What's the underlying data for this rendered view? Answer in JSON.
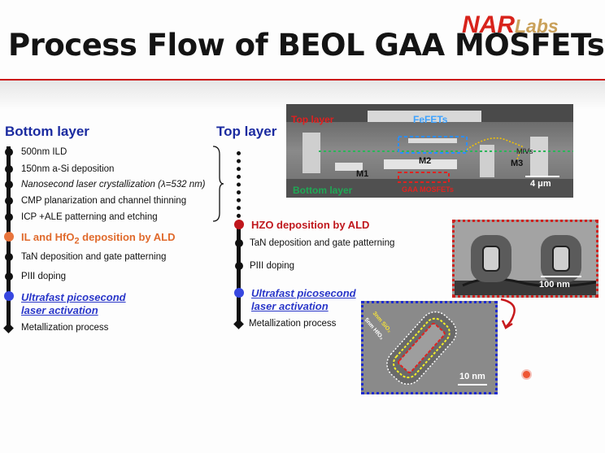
{
  "slide": {
    "title": "Process Flow of BEOL GAA MOSFETs",
    "logo": {
      "nar": "NAR",
      "labs": "Labs"
    }
  },
  "bottom": {
    "header": "Bottom layer",
    "steps": {
      "s0": "500nm ILD",
      "s1": "150nm a-Si deposition",
      "s2": "Nanosecond laser crystallization (λ=532 nm)",
      "s3": "CMP planarization and channel thinning",
      "s4": "ICP +ALE patterning and etching",
      "s5a": "IL and HfO",
      "s5sub": "2",
      "s5b": " deposition by ALD",
      "s6": "TaN deposition and gate patterning",
      "s7": "PIII doping",
      "s8a": "Ultrafast picosecond",
      "s8b": "laser activation",
      "s9": "Metallization process"
    }
  },
  "top": {
    "header": "Top layer",
    "steps": {
      "t0": "HZO deposition by ALD",
      "t1": "TaN deposition and gate patterning",
      "t2": "PIII doping",
      "t3a": "Ultrafast picosecond",
      "t3b": "laser activation",
      "t4": "Metallization process"
    }
  },
  "sem": {
    "top_layer": "Top layer",
    "fefets": "FeFETs",
    "m1": "M1",
    "m2": "M2",
    "m3": "M3",
    "mivs": "MIVs",
    "bottom_layer": "Bottom layer",
    "gaa": "GAA MOSFETs",
    "scale": "4 μm"
  },
  "tem1": {
    "scale": "100 nm"
  },
  "tem2": {
    "scale": "10 nm",
    "sio2": "3nm SiO₂",
    "hfo2": "5nm HfO₂"
  },
  "colors": {
    "accent_red": "#c0171d",
    "header_blue": "#1b2ba0",
    "highlight_orange": "#e06a2c",
    "highlight_blue": "#2a37c9"
  }
}
